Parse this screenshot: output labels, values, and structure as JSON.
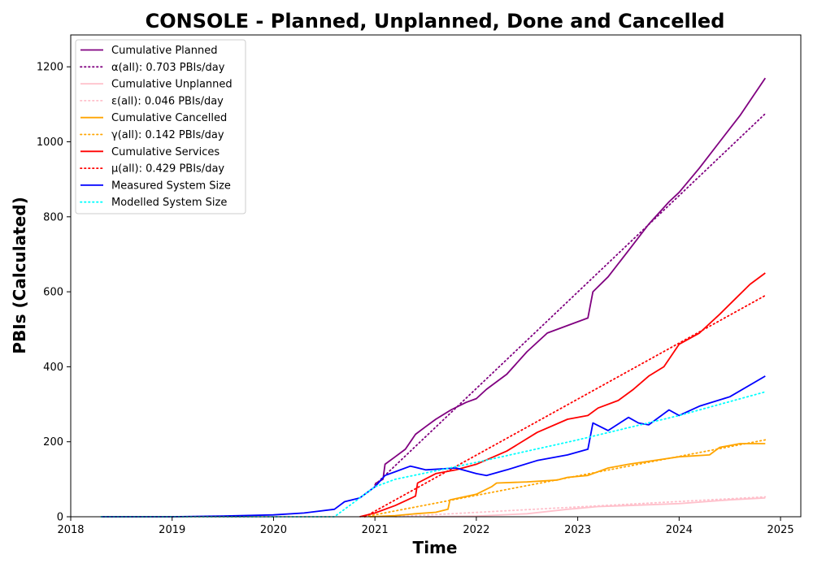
{
  "chart_data": {
    "type": "line",
    "title": "CONSOLE - Planned, Unplanned, Done  and Cancelled",
    "xlabel": "Time",
    "ylabel": "PBIs (Calculated)",
    "xlim": [
      2018.0,
      2025.2
    ],
    "ylim": [
      0,
      1285
    ],
    "xticks": [
      2018,
      2019,
      2020,
      2021,
      2022,
      2023,
      2024,
      2025
    ],
    "xtick_labels": [
      "2018",
      "2019",
      "2020",
      "2021",
      "2022",
      "2023",
      "2024",
      "2025"
    ],
    "yticks": [
      0,
      200,
      400,
      600,
      800,
      1000,
      1200
    ],
    "ytick_labels": [
      "0",
      "200",
      "400",
      "600",
      "800",
      "1000",
      "1200"
    ],
    "grid": false,
    "legend_position": "top-left",
    "series": [
      {
        "name": "Cumulative Planned",
        "color": "#800080",
        "style": "solid",
        "x": [
          2021.0,
          2021.08,
          2021.1,
          2021.2,
          2021.3,
          2021.4,
          2021.5,
          2021.6,
          2021.75,
          2021.9,
          2022.0,
          2022.1,
          2022.3,
          2022.5,
          2022.7,
          2022.9,
          2023.1,
          2023.15,
          2023.3,
          2023.5,
          2023.7,
          2023.9,
          2024.0,
          2024.2,
          2024.4,
          2024.6,
          2024.75,
          2024.85
        ],
        "y": [
          88,
          100,
          140,
          160,
          180,
          220,
          240,
          260,
          285,
          305,
          315,
          340,
          380,
          440,
          490,
          510,
          530,
          600,
          640,
          710,
          780,
          840,
          865,
          930,
          1000,
          1070,
          1130,
          1170
        ]
      },
      {
        "name": "α(all): 0.703 PBIs/day",
        "color": "#800080",
        "style": "dotted",
        "x": [
          2021.0,
          2024.85
        ],
        "y": [
          85,
          1075
        ]
      },
      {
        "name": "Cumulative Unplanned",
        "color": "#ffc0cb",
        "style": "solid",
        "x": [
          2021.5,
          2022.0,
          2022.5,
          2022.9,
          2023.2,
          2023.5,
          2024.0,
          2024.5,
          2024.85
        ],
        "y": [
          0,
          2,
          8,
          20,
          27,
          30,
          35,
          45,
          50
        ]
      },
      {
        "name": "ε(all): 0.046 PBIs/day",
        "color": "#ffc0cb",
        "style": "dotted",
        "x": [
          2021.2,
          2024.85
        ],
        "y": [
          0,
          53
        ]
      },
      {
        "name": "Cumulative Cancelled",
        "color": "#ffa500",
        "style": "solid",
        "x": [
          2020.95,
          2021.2,
          2021.4,
          2021.6,
          2021.72,
          2021.74,
          2022.0,
          2022.15,
          2022.2,
          2022.5,
          2022.8,
          2022.9,
          2023.1,
          2023.3,
          2023.5,
          2023.8,
          2024.0,
          2024.3,
          2024.4,
          2024.6,
          2024.85
        ],
        "y": [
          0,
          3,
          8,
          12,
          20,
          45,
          60,
          80,
          90,
          93,
          98,
          105,
          110,
          130,
          140,
          152,
          160,
          165,
          185,
          195,
          195
        ]
      },
      {
        "name": "γ(all): 0.142 PBIs/day",
        "color": "#ffa500",
        "style": "dotted",
        "x": [
          2020.9,
          2024.85
        ],
        "y": [
          0,
          205
        ]
      },
      {
        "name": "Cumulative Services",
        "color": "#ff0000",
        "style": "solid",
        "x": [
          2020.85,
          2021.0,
          2021.2,
          2021.4,
          2021.42,
          2021.6,
          2021.8,
          2022.0,
          2022.3,
          2022.6,
          2022.9,
          2023.1,
          2023.2,
          2023.4,
          2023.55,
          2023.7,
          2023.85,
          2024.0,
          2024.2,
          2024.4,
          2024.55,
          2024.7,
          2024.85
        ],
        "y": [
          0,
          10,
          30,
          55,
          90,
          115,
          125,
          140,
          175,
          225,
          260,
          270,
          290,
          310,
          340,
          375,
          400,
          460,
          490,
          540,
          580,
          620,
          650
        ]
      },
      {
        "name": "μ(all): 0.429 PBIs/day",
        "color": "#ff0000",
        "style": "dotted",
        "x": [
          2020.9,
          2024.85
        ],
        "y": [
          0,
          590
        ]
      },
      {
        "name": "Measured System Size",
        "color": "#0000ff",
        "style": "solid",
        "x": [
          2018.3,
          2019.0,
          2019.5,
          2020.0,
          2020.3,
          2020.6,
          2020.7,
          2020.85,
          2021.0,
          2021.1,
          2021.2,
          2021.35,
          2021.5,
          2021.8,
          2022.0,
          2022.1,
          2022.3,
          2022.6,
          2022.9,
          2023.1,
          2023.15,
          2023.3,
          2023.5,
          2023.6,
          2023.7,
          2023.9,
          2024.0,
          2024.2,
          2024.5,
          2024.85
        ],
        "y": [
          0,
          0,
          2,
          5,
          10,
          20,
          40,
          50,
          80,
          110,
          120,
          135,
          125,
          130,
          115,
          110,
          125,
          150,
          165,
          180,
          250,
          230,
          265,
          250,
          245,
          285,
          270,
          295,
          320,
          375
        ]
      },
      {
        "name": "Modelled System Size",
        "color": "#00ffff",
        "style": "dotted",
        "x": [
          2018.3,
          2020.6,
          2020.75,
          2020.9,
          2021.0,
          2021.2,
          2022.0,
          2023.0,
          2024.0,
          2024.85
        ],
        "y": [
          0,
          0,
          30,
          60,
          80,
          100,
          145,
          205,
          270,
          333
        ]
      }
    ]
  }
}
